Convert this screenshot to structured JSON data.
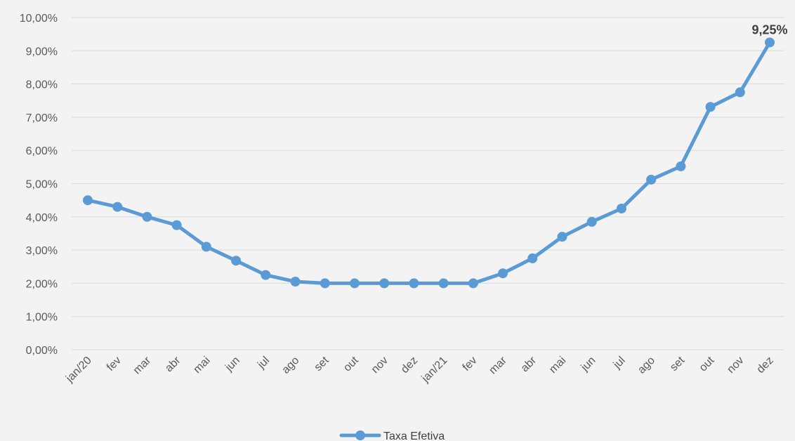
{
  "chart_data": {
    "type": "line",
    "categories": [
      "jan/20",
      "fev",
      "mar",
      "abr",
      "mai",
      "jun",
      "jul",
      "ago",
      "set",
      "out",
      "nov",
      "dez",
      "jan/21",
      "fev",
      "mar",
      "abr",
      "mai",
      "jun",
      "jul",
      "ago",
      "set",
      "out",
      "nov",
      "dez"
    ],
    "series": [
      {
        "name": "Taxa Efetiva",
        "color": "#5b9bd5",
        "values": [
          4.5,
          4.3,
          4.0,
          3.75,
          3.1,
          2.68,
          2.25,
          2.05,
          2.0,
          2.0,
          2.0,
          2.0,
          2.0,
          2.0,
          2.3,
          2.75,
          3.4,
          3.85,
          4.25,
          5.12,
          5.52,
          7.31,
          7.75,
          9.25
        ]
      }
    ],
    "y_ticks": [
      "0,00%",
      "1,00%",
      "2,00%",
      "3,00%",
      "4,00%",
      "5,00%",
      "6,00%",
      "7,00%",
      "8,00%",
      "9,00%",
      "10,00%"
    ],
    "ylim": [
      0,
      10
    ],
    "grid": true,
    "legend_position": "bottom-center",
    "data_labels": [
      {
        "index": 23,
        "text": "9,25%"
      }
    ]
  }
}
